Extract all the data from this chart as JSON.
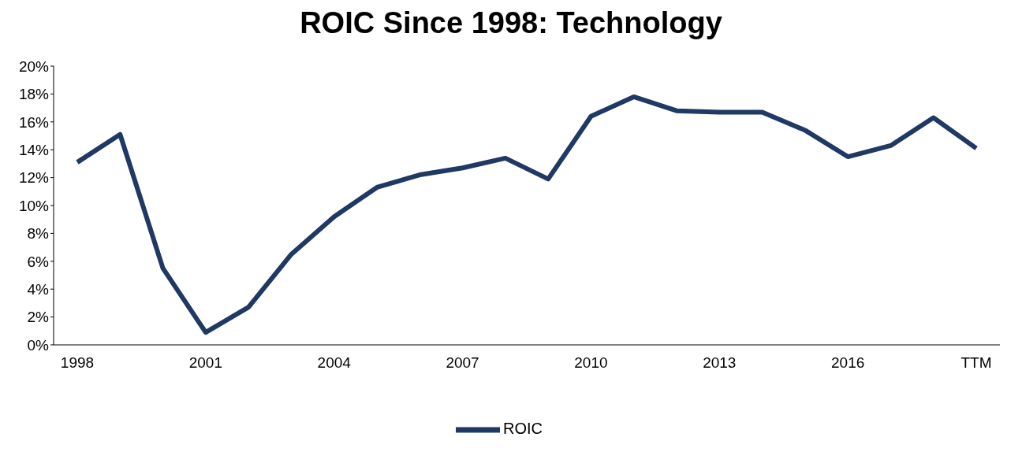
{
  "chart_data": {
    "type": "line",
    "title": "ROIC Since 1998: Technology",
    "categories": [
      "1998",
      null,
      null,
      "2001",
      null,
      null,
      "2004",
      null,
      null,
      "2007",
      null,
      null,
      "2010",
      null,
      null,
      "2013",
      null,
      null,
      "2016",
      null,
      null,
      "TTM"
    ],
    "series": [
      {
        "name": "ROIC",
        "color": "#1f3864",
        "values": [
          13.1,
          15.1,
          5.5,
          0.9,
          2.7,
          6.5,
          9.2,
          11.3,
          12.2,
          12.7,
          13.4,
          11.9,
          16.4,
          17.8,
          16.8,
          16.7,
          16.7,
          15.4,
          13.5,
          14.3,
          16.3,
          14.1
        ]
      }
    ],
    "ylim": [
      0,
      20
    ],
    "yticks": [
      {
        "value": 0,
        "label": "0%"
      },
      {
        "value": 2,
        "label": "2%"
      },
      {
        "value": 4,
        "label": "4%"
      },
      {
        "value": 6,
        "label": "6%"
      },
      {
        "value": 8,
        "label": "8%"
      },
      {
        "value": 10,
        "label": "10%"
      },
      {
        "value": 12,
        "label": "12%"
      },
      {
        "value": 14,
        "label": "14%"
      },
      {
        "value": 16,
        "label": "16%"
      },
      {
        "value": 18,
        "label": "18%"
      },
      {
        "value": 20,
        "label": "20%"
      }
    ],
    "grid": false,
    "legend": "bottom",
    "marker": "none",
    "line_style": "solid"
  }
}
